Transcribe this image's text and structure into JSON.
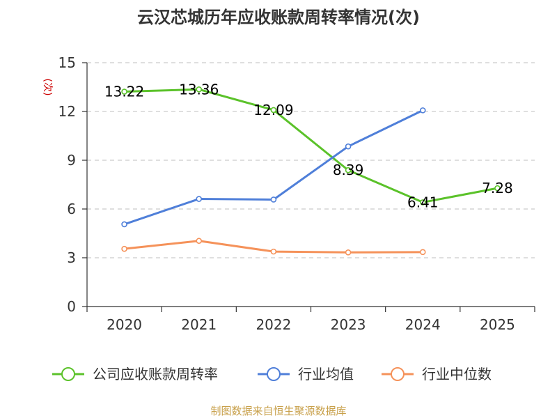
{
  "chart_data": {
    "type": "line",
    "title": "云汉芯城历年应收账款周转率情况(次)",
    "ylabel": "(次)",
    "xlabel": "",
    "categories": [
      "2020",
      "2021",
      "2022",
      "2023",
      "2024",
      "2025"
    ],
    "y_ticks": [
      "0",
      "3",
      "6",
      "9",
      "12",
      "15"
    ],
    "ylim": [
      0,
      15
    ],
    "grid": true,
    "legend_position": "bottom",
    "series": [
      {
        "name": "公司应收账款周转率",
        "color": "#5bc22a",
        "values": [
          13.22,
          13.36,
          12.09,
          8.39,
          6.41,
          7.28
        ],
        "labels": [
          "13.22",
          "13.36",
          "12.09",
          "8.39",
          "6.41",
          "7.28"
        ]
      },
      {
        "name": "行业均值",
        "color": "#4f7fd9",
        "values": [
          5.06,
          6.62,
          6.58,
          9.85,
          12.07,
          null
        ]
      },
      {
        "name": "行业中位数",
        "color": "#f5925a",
        "values": [
          3.55,
          4.04,
          3.38,
          3.33,
          3.35,
          null
        ]
      }
    ],
    "source": "制图数据来自恒生聚源数据库",
    "colors": {
      "unit": "#cc0000",
      "source": "#c8a04a",
      "grid": "#cccccc",
      "axis": "#333333"
    }
  }
}
